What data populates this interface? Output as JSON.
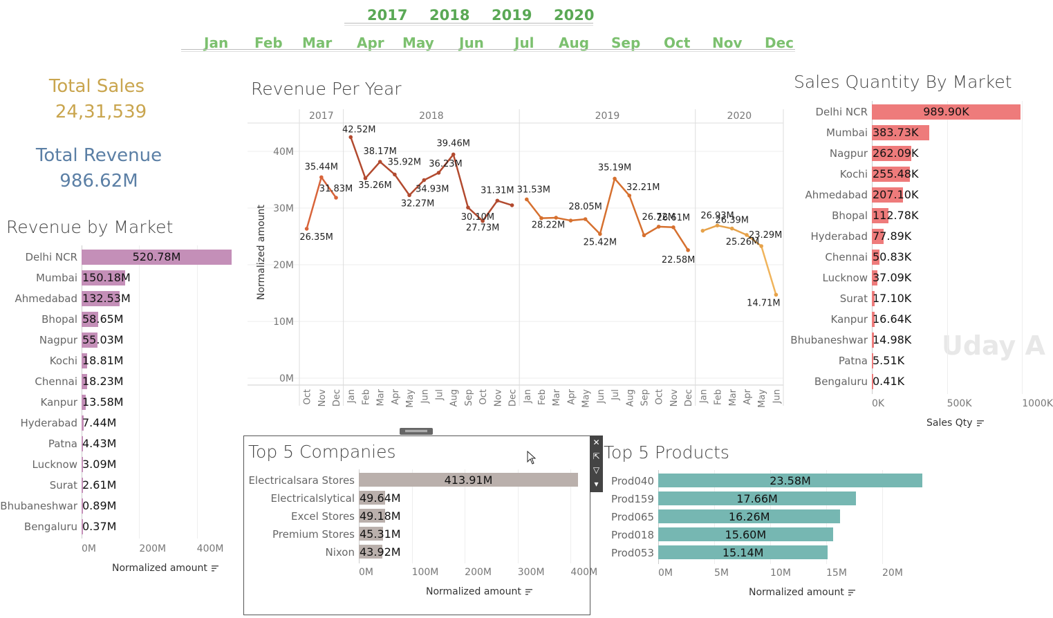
{
  "filters": {
    "years": [
      "2017",
      "2018",
      "2019",
      "2020"
    ],
    "months": [
      "Jan",
      "Feb",
      "Mar",
      "Apr",
      "May",
      "Jun",
      "Jul",
      "Aug",
      "Sep",
      "Oct",
      "Nov",
      "Dec"
    ]
  },
  "kpis": {
    "total_sales_label": "Total Sales",
    "total_sales_value": "24,31,539",
    "total_revenue_label": "Total Revenue",
    "total_revenue_value": "986.62M",
    "sales_color": "#c9a54e",
    "revenue_color": "#5b7fa5"
  },
  "revenue_by_market": {
    "title": "Revenue by Market",
    "axis_title": "Normalized amount",
    "ticks": [
      "0M",
      "200M",
      "400M"
    ],
    "color": "#c48fb8",
    "rows": [
      {
        "label": "Delhi NCR",
        "value": 520.78,
        "text": "520.78M"
      },
      {
        "label": "Mumbai",
        "value": 150.18,
        "text": "150.18M"
      },
      {
        "label": "Ahmedabad",
        "value": 132.53,
        "text": "132.53M"
      },
      {
        "label": "Bhopal",
        "value": 58.65,
        "text": "58.65M"
      },
      {
        "label": "Nagpur",
        "value": 55.03,
        "text": "55.03M"
      },
      {
        "label": "Kochi",
        "value": 18.81,
        "text": "18.81M"
      },
      {
        "label": "Chennai",
        "value": 18.23,
        "text": "18.23M"
      },
      {
        "label": "Kanpur",
        "value": 13.58,
        "text": "13.58M"
      },
      {
        "label": "Hyderabad",
        "value": 7.44,
        "text": "7.44M"
      },
      {
        "label": "Patna",
        "value": 4.43,
        "text": "4.43M"
      },
      {
        "label": "Lucknow",
        "value": 3.09,
        "text": "3.09M"
      },
      {
        "label": "Surat",
        "value": 2.61,
        "text": "2.61M"
      },
      {
        "label": "Bhubaneshwar",
        "value": 0.89,
        "text": "0.89M"
      },
      {
        "label": "Bengaluru",
        "value": 0.37,
        "text": "0.37M"
      }
    ]
  },
  "revenue_per_year": {
    "title": "Revenue Per Year",
    "ylabel": "Normalized amount",
    "yticks": [
      "0M",
      "10M",
      "20M",
      "30M",
      "40M"
    ],
    "years": [
      {
        "label": "2017",
        "months": [
          "Oct",
          "Nov",
          "Dec"
        ],
        "values": [
          26.35,
          35.44,
          31.83
        ]
      },
      {
        "label": "2018",
        "months": [
          "Jan",
          "Feb",
          "Mar",
          "Apr",
          "May",
          "Jun",
          "Jul",
          "Aug",
          "Sep",
          "Oct",
          "Nov",
          "Dec"
        ],
        "values": [
          42.52,
          35.26,
          38.17,
          35.92,
          32.27,
          34.93,
          36.23,
          39.46,
          30.1,
          27.73,
          31.31,
          30.5
        ]
      },
      {
        "label": "2019",
        "months": [
          "Jan",
          "Feb",
          "Mar",
          "Apr",
          "May",
          "Jun",
          "Jul",
          "Aug",
          "Sep",
          "Oct",
          "Nov",
          "Dec"
        ],
        "values": [
          31.53,
          28.22,
          28.3,
          27.8,
          28.05,
          25.42,
          35.19,
          32.21,
          25.2,
          26.72,
          26.61,
          22.58
        ]
      },
      {
        "label": "2020",
        "months": [
          "Jan",
          "Feb",
          "Mar",
          "Apr",
          "May",
          "Jun"
        ],
        "values": [
          26.0,
          26.93,
          26.39,
          25.26,
          23.29,
          14.71
        ]
      }
    ],
    "labels": [
      "26.35M",
      "35.44M",
      "31.83M",
      "42.52M",
      "35.26M",
      "38.17M",
      "35.92M",
      "32.27M",
      "34.93M",
      "36.23M",
      "39.46M",
      "30.10M",
      "27.73M",
      "31.31M",
      "",
      "31.53M",
      "28.22M",
      "",
      "",
      "28.05M",
      "25.42M",
      "35.19M",
      "32.21M",
      "",
      "26.72M",
      "26.61M",
      "22.58M",
      "",
      "26.93M",
      "26.39M",
      "25.26M",
      "23.29M",
      "14.71M"
    ]
  },
  "sales_qty_by_market": {
    "title": "Sales Quantity By Market",
    "axis_title": "Sales Qty",
    "ticks": [
      "0K",
      "500K",
      "1000K"
    ],
    "color": "#ee7b7b",
    "rows": [
      {
        "label": "Delhi NCR",
        "value": 989.9,
        "text": "989.90K"
      },
      {
        "label": "Mumbai",
        "value": 383.73,
        "text": "383.73K"
      },
      {
        "label": "Nagpur",
        "value": 262.09,
        "text": "262.09K"
      },
      {
        "label": "Kochi",
        "value": 255.48,
        "text": "255.48K"
      },
      {
        "label": "Ahmedabad",
        "value": 207.1,
        "text": "207.10K"
      },
      {
        "label": "Bhopal",
        "value": 112.78,
        "text": "112.78K"
      },
      {
        "label": "Hyderabad",
        "value": 77.89,
        "text": "77.89K"
      },
      {
        "label": "Chennai",
        "value": 50.83,
        "text": "50.83K"
      },
      {
        "label": "Lucknow",
        "value": 37.09,
        "text": "37.09K"
      },
      {
        "label": "Surat",
        "value": 17.1,
        "text": "17.10K"
      },
      {
        "label": "Kanpur",
        "value": 16.64,
        "text": "16.64K"
      },
      {
        "label": "Bhubaneshwar",
        "value": 14.98,
        "text": "14.98K"
      },
      {
        "label": "Patna",
        "value": 5.51,
        "text": "5.51K"
      },
      {
        "label": "Bengaluru",
        "value": 0.41,
        "text": "0.41K"
      }
    ],
    "watermark": "Uday A"
  },
  "top5_companies": {
    "title": "Top 5 Companies",
    "axis_title": "Normalized amount",
    "ticks": [
      "0M",
      "100M",
      "200M",
      "300M",
      "400M"
    ],
    "color": "#bab0ac",
    "rows": [
      {
        "label": "Electricalsara Stores",
        "value": 413.91,
        "text": "413.91M"
      },
      {
        "label": "Electricalslytical",
        "value": 49.64,
        "text": "49.64M"
      },
      {
        "label": "Excel Stores",
        "value": 49.18,
        "text": "49.18M"
      },
      {
        "label": "Premium Stores",
        "value": 45.31,
        "text": "45.31M"
      },
      {
        "label": "Nixon",
        "value": 43.92,
        "text": "43.92M"
      }
    ]
  },
  "top5_products": {
    "title": "Top 5 Products",
    "axis_title": "Normalized amount",
    "ticks": [
      "0M",
      "5M",
      "10M",
      "15M",
      "20M"
    ],
    "color": "#76b7b2",
    "rows": [
      {
        "label": "Prod040",
        "value": 23.58,
        "text": "23.58M"
      },
      {
        "label": "Prod159",
        "value": 17.66,
        "text": "17.66M"
      },
      {
        "label": "Prod065",
        "value": 16.26,
        "text": "16.26M"
      },
      {
        "label": "Prod018",
        "value": 15.6,
        "text": "15.60M"
      },
      {
        "label": "Prod053",
        "value": 15.14,
        "text": "15.14M"
      }
    ]
  },
  "chart_data": [
    {
      "type": "line",
      "title": "Revenue Per Year",
      "ylabel": "Normalized amount",
      "ylim": [
        0,
        45
      ],
      "x": [
        "2017-Oct",
        "2017-Nov",
        "2017-Dec",
        "2018-Jan",
        "2018-Feb",
        "2018-Mar",
        "2018-Apr",
        "2018-May",
        "2018-Jun",
        "2018-Jul",
        "2018-Aug",
        "2018-Sep",
        "2018-Oct",
        "2018-Nov",
        "2018-Dec",
        "2019-Jan",
        "2019-Feb",
        "2019-Mar",
        "2019-Apr",
        "2019-May",
        "2019-Jun",
        "2019-Jul",
        "2019-Aug",
        "2019-Sep",
        "2019-Oct",
        "2019-Nov",
        "2019-Dec",
        "2020-Jan",
        "2020-Feb",
        "2020-Mar",
        "2020-Apr",
        "2020-May",
        "2020-Jun"
      ],
      "values": [
        26.35,
        35.44,
        31.83,
        42.52,
        35.26,
        38.17,
        35.92,
        32.27,
        34.93,
        36.23,
        39.46,
        30.1,
        27.73,
        31.31,
        30.5,
        31.53,
        28.22,
        28.3,
        27.8,
        28.05,
        25.42,
        35.19,
        32.21,
        25.2,
        26.72,
        26.61,
        22.58,
        26.0,
        26.93,
        26.39,
        25.26,
        23.29,
        14.71
      ]
    },
    {
      "type": "bar",
      "title": "Revenue by Market",
      "xlabel": "Normalized amount",
      "categories": [
        "Delhi NCR",
        "Mumbai",
        "Ahmedabad",
        "Bhopal",
        "Nagpur",
        "Kochi",
        "Chennai",
        "Kanpur",
        "Hyderabad",
        "Patna",
        "Lucknow",
        "Surat",
        "Bhubaneshwar",
        "Bengaluru"
      ],
      "values": [
        520.78,
        150.18,
        132.53,
        58.65,
        55.03,
        18.81,
        18.23,
        13.58,
        7.44,
        4.43,
        3.09,
        2.61,
        0.89,
        0.37
      ]
    },
    {
      "type": "bar",
      "title": "Sales Quantity By Market",
      "xlabel": "Sales Qty",
      "categories": [
        "Delhi NCR",
        "Mumbai",
        "Nagpur",
        "Kochi",
        "Ahmedabad",
        "Bhopal",
        "Hyderabad",
        "Chennai",
        "Lucknow",
        "Surat",
        "Kanpur",
        "Bhubaneshwar",
        "Patna",
        "Bengaluru"
      ],
      "values": [
        989.9,
        383.73,
        262.09,
        255.48,
        207.1,
        112.78,
        77.89,
        50.83,
        37.09,
        17.1,
        16.64,
        14.98,
        5.51,
        0.41
      ]
    },
    {
      "type": "bar",
      "title": "Top 5 Companies",
      "xlabel": "Normalized amount",
      "categories": [
        "Electricalsara Stores",
        "Electricalslytical",
        "Excel Stores",
        "Premium Stores",
        "Nixon"
      ],
      "values": [
        413.91,
        49.64,
        49.18,
        45.31,
        43.92
      ]
    },
    {
      "type": "bar",
      "title": "Top 5 Products",
      "xlabel": "Normalized amount",
      "categories": [
        "Prod040",
        "Prod159",
        "Prod065",
        "Prod018",
        "Prod053"
      ],
      "values": [
        23.58,
        17.66,
        16.26,
        15.6,
        15.14
      ]
    }
  ]
}
